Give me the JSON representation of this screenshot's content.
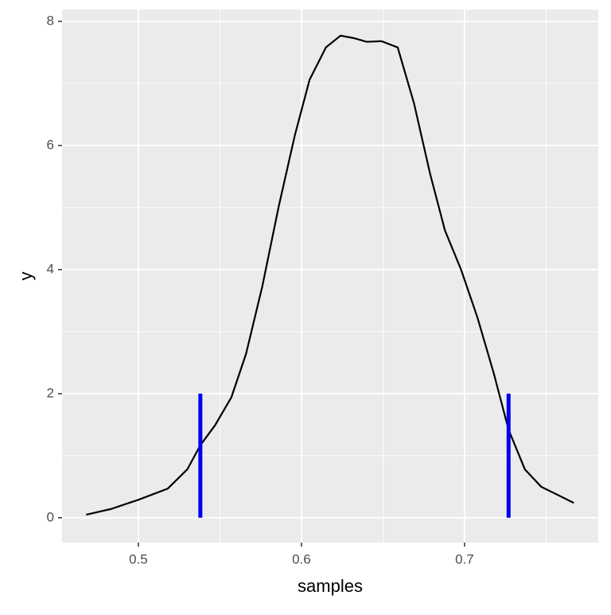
{
  "chart_data": {
    "type": "line",
    "x_label": "samples",
    "y_label": "y",
    "x": [
      0.468,
      0.483,
      0.5,
      0.518,
      0.53,
      0.538,
      0.547,
      0.557,
      0.566,
      0.576,
      0.586,
      0.596,
      0.605,
      0.615,
      0.624,
      0.632,
      0.64,
      0.649,
      0.659,
      0.669,
      0.679,
      0.688,
      0.698,
      0.708,
      0.718,
      0.727,
      0.737,
      0.747,
      0.757,
      0.767
    ],
    "values": [
      0.05,
      0.14,
      0.29,
      0.47,
      0.78,
      1.17,
      1.49,
      1.94,
      2.64,
      3.73,
      5.01,
      6.17,
      7.06,
      7.58,
      7.77,
      7.73,
      7.67,
      7.68,
      7.58,
      6.68,
      5.53,
      4.63,
      3.99,
      3.22,
      2.32,
      1.42,
      0.78,
      0.5,
      0.37,
      0.24
    ],
    "color": "#000000",
    "segments": {
      "x": [
        0.538,
        0.727
      ],
      "y_start": 0,
      "y_end": 2,
      "color": "#0000ee"
    },
    "xlim": [
      0.4532,
      0.782
    ],
    "ylim": [
      -0.4,
      8.19
    ],
    "xticks": [
      0.5,
      0.6,
      0.7
    ],
    "yticks": [
      0,
      2,
      4,
      6,
      8
    ],
    "minor_xticks": [
      0.45,
      0.55,
      0.65,
      0.75
    ],
    "minor_yticks": [
      1,
      3,
      5,
      7
    ],
    "grid": true
  }
}
